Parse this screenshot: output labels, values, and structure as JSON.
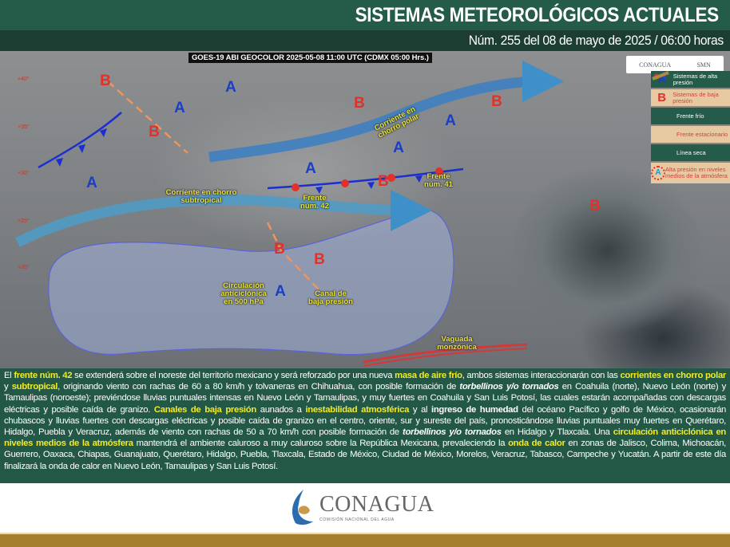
{
  "header": {
    "title": "SISTEMAS METEOROLÓGICOS ACTUALES",
    "subtitle": "Núm. 255 del 08 de mayo de 2025 / 06:00 horas"
  },
  "map": {
    "satellite_caption": "GOES-19 ABI GEOCOLOR 2025-05-08 11:00 UTC (CDMX  05:00 Hrs.)",
    "latitudes": [
      "+40°",
      "+35°",
      "+30°",
      "+25°",
      "+20°"
    ],
    "high_symbol": "A",
    "low_symbol": "B",
    "labels": {
      "polar_jet": "Corriente en chorro polar",
      "subtropical_jet": "Corriente en chorro subtropical",
      "front42": "Frente núm. 42",
      "front41": "Frente núm. 41",
      "anticyclone": "Circulación anticiclónica en 500 hPa",
      "trough": "Canal de baja presión",
      "monsoon": "Vaguada monzónica"
    },
    "logos": [
      "CONAGUA",
      "SMN"
    ],
    "legend": [
      {
        "icon": "high-pressure-icon",
        "symbol": "A",
        "label": "Sistemas de alta presión"
      },
      {
        "icon": "low-pressure-icon",
        "symbol": "B",
        "label": "Sistemas de baja presión"
      },
      {
        "icon": "cold-front-icon",
        "label": "Frente frío"
      },
      {
        "icon": "stationary-front-icon",
        "label": "Frente estacionario"
      },
      {
        "icon": "dry-line-icon",
        "label": "Línea seca"
      },
      {
        "icon": "upper-high-icon",
        "symbol": "A",
        "label": "Alta presión en niveles medios de la atmósfera"
      }
    ],
    "colors": {
      "high": "#1a3fc4",
      "low": "#e0312a",
      "jet": "#3f8fc9",
      "label": "#e6e13a"
    }
  },
  "paragraph": {
    "segments": [
      {
        "t": "El ",
        "s": "n"
      },
      {
        "t": "frente núm. 42",
        "s": "hl"
      },
      {
        "t": " se extenderá sobre el noreste del territorio mexicano y será reforzado por una nueva ",
        "s": "n"
      },
      {
        "t": "masa de aire frío",
        "s": "hl"
      },
      {
        "t": ", ambos sistemas interaccionarán con las ",
        "s": "n"
      },
      {
        "t": "corrientes en chorro polar",
        "s": "hl"
      },
      {
        "t": " y ",
        "s": "n"
      },
      {
        "t": "subtropical",
        "s": "hl"
      },
      {
        "t": ", originando viento con rachas de 60 a 80 km/h y tolvaneras en Chihuahua, con posible formación de ",
        "s": "n"
      },
      {
        "t": "torbellinos y/o tornados",
        "s": "bi"
      },
      {
        "t": " en Coahuila (norte), Nuevo León (norte) y Tamaulipas (noroeste); previéndose lluvias puntuales intensas en Nuevo León y Tamaulipas, y muy fuertes en Coahuila y San Luis Potosí, las cuales estarán acompañadas con descargas eléctricas y posible caída de granizo. ",
        "s": "n"
      },
      {
        "t": "Canales de baja presión",
        "s": "hl"
      },
      {
        "t": " aunados a ",
        "s": "n"
      },
      {
        "t": "inestabilidad atmosférica",
        "s": "hl"
      },
      {
        "t": " y al ",
        "s": "n"
      },
      {
        "t": "ingreso de humedad",
        "s": "b"
      },
      {
        "t": " del océano Pacífico y golfo de México, ocasionarán chubascos y lluvias fuertes con descargas eléctricas y posible caída de granizo en el centro, oriente, sur y sureste del país, pronosticándose lluvias puntuales muy fuertes en Querétaro, Hidalgo, Puebla y Veracruz, además de viento con rachas de 50 a 70 km/h con posible formación de ",
        "s": "n"
      },
      {
        "t": "torbellinos y/o tornados",
        "s": "bi"
      },
      {
        "t": " en Hidalgo y Tlaxcala. Una ",
        "s": "n"
      },
      {
        "t": "circulación anticiclónica en niveles medios de la atmósfera",
        "s": "hl"
      },
      {
        "t": " mantendrá el ambiente caluroso a muy caluroso sobre la República Mexicana, prevaleciendo la ",
        "s": "n"
      },
      {
        "t": "onda de calor",
        "s": "hl"
      },
      {
        "t": " en zonas de Jalisco, Colima, Michoacán, Guerrero, Oaxaca, Chiapas, Guanajuato, Querétaro, Hidalgo, Puebla, Tlaxcala, Estado de México, Ciudad de México, Morelos, Veracruz, Tabasco, Campeche y Yucatán. A partir de este día finalizará la onda de calor en Nuevo León, Tamaulipas y San Luis Potosí.",
        "s": "n"
      }
    ]
  },
  "footer": {
    "logo_name": "CONAGUA",
    "logo_tagline": "COMISIÓN NACIONAL DEL AGUA"
  }
}
